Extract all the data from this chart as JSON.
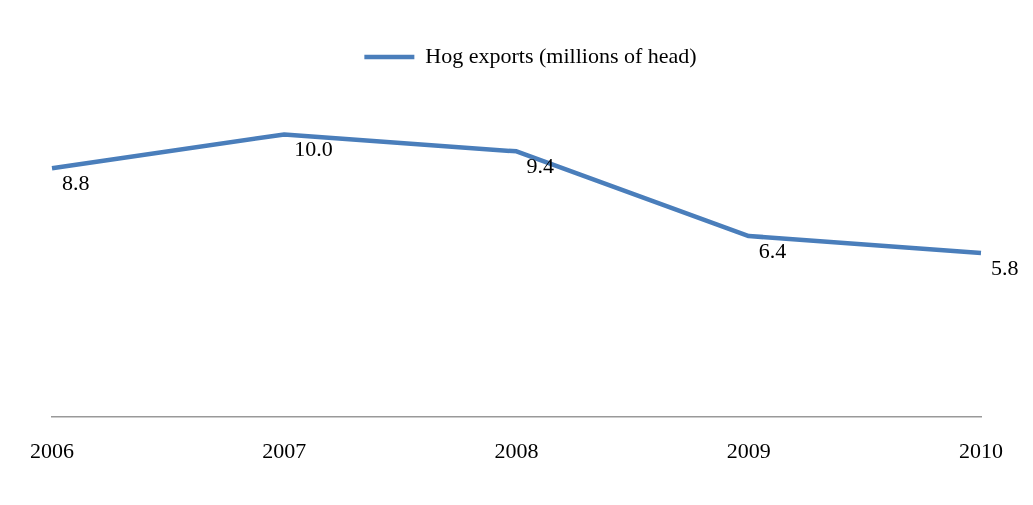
{
  "chart_data": {
    "type": "line",
    "categories": [
      "2006",
      "2007",
      "2008",
      "2009",
      "2010"
    ],
    "series": [
      {
        "name": "Hog exports (millions of head)",
        "color": "#4a7ebb",
        "values": [
          8.8,
          10.0,
          9.4,
          6.4,
          5.8
        ],
        "value_labels": [
          "8.8",
          "10.0",
          "9.4",
          "6.4",
          "5.8"
        ]
      }
    ],
    "tick_labels": "x",
    "legend": "top",
    "grid": false,
    "marker": "none"
  }
}
